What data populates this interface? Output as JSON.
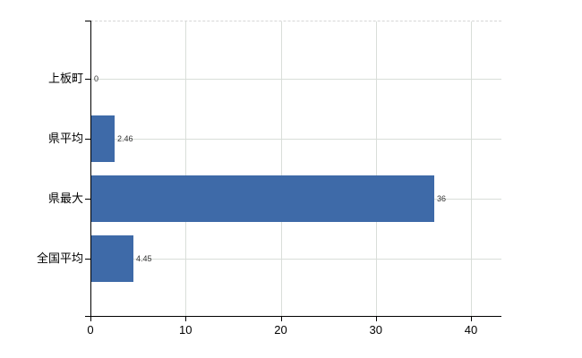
{
  "chart_data": {
    "type": "bar",
    "orientation": "horizontal",
    "title": "",
    "xlabel": "",
    "ylabel": "",
    "categories": [
      "上板町",
      "県平均",
      "県最大",
      "全国平均"
    ],
    "values": [
      0,
      2.46,
      36,
      4.45
    ],
    "value_labels": [
      "0",
      "2.46",
      "36",
      "4.45"
    ],
    "x_ticks": [
      0,
      10,
      20,
      30,
      40
    ],
    "x_tick_labels": [
      "0",
      "10",
      "20",
      "30",
      "40"
    ],
    "xlim": [
      0,
      43.2
    ],
    "grid": true,
    "legend": false,
    "colors": {
      "bar": "#3E6AA8",
      "gridline": "#d9ded9",
      "top_border": "#d6d6d6",
      "axis": "#000000",
      "tick_label": "#000000",
      "category_label": "#000000",
      "value_label": "#333333",
      "background": "#ffffff"
    }
  }
}
